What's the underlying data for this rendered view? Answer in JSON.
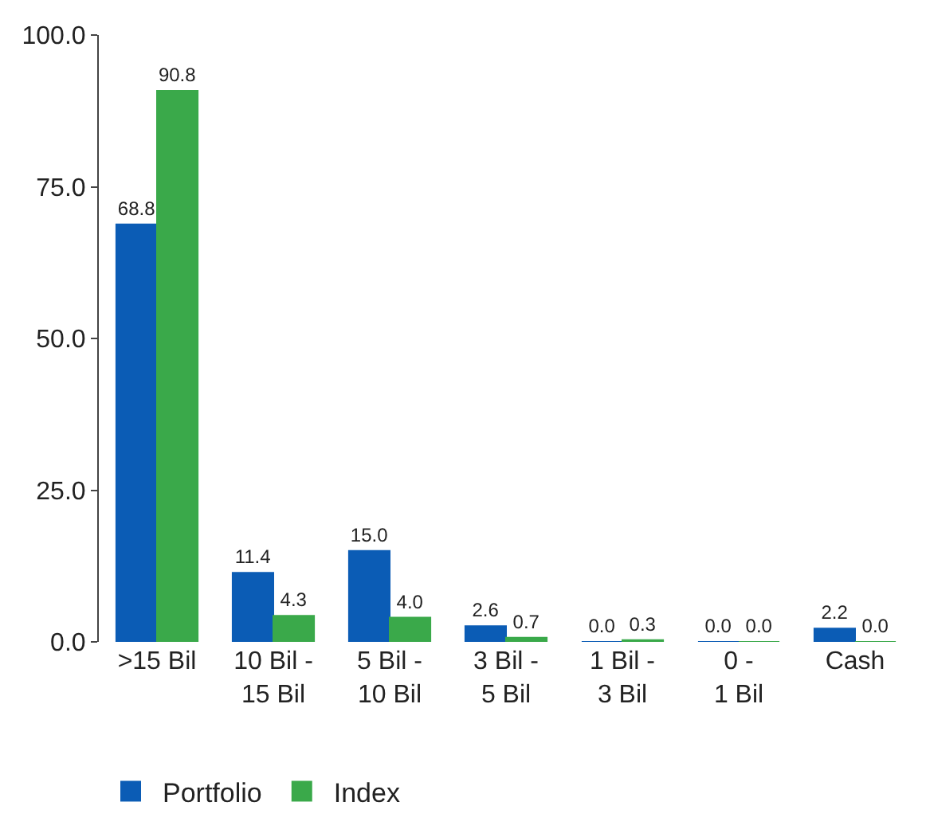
{
  "chart_data": {
    "type": "bar",
    "categories": [
      ">15 Bil",
      "10 Bil -\n15 Bil",
      "5 Bil -\n10 Bil",
      "3 Bil -\n5 Bil",
      "1 Bil -\n3 Bil",
      "0 -\n1 Bil",
      "Cash"
    ],
    "series": [
      {
        "name": "Portfolio",
        "color": "#0b5cb5",
        "values": [
          68.8,
          11.4,
          15.0,
          2.6,
          0.0,
          0.0,
          2.2
        ],
        "value_labels": [
          "68.8",
          "11.4",
          "15.0",
          "2.6",
          "0.0",
          "0.0",
          "2.2"
        ]
      },
      {
        "name": "Index",
        "color": "#3aa94a",
        "values": [
          90.8,
          4.3,
          4.0,
          0.7,
          0.3,
          0.0,
          0.0
        ],
        "value_labels": [
          "90.8",
          "4.3",
          "4.0",
          "0.7",
          "0.3",
          "0.0",
          "0.0"
        ]
      }
    ],
    "ylim": [
      0,
      100
    ],
    "yticks": [
      {
        "value": 0,
        "label": "0.0"
      },
      {
        "value": 25,
        "label": "25.0"
      },
      {
        "value": 50,
        "label": "50.0"
      },
      {
        "value": 75,
        "label": "75.0"
      },
      {
        "value": 100,
        "label": "100.0"
      }
    ],
    "grid": false,
    "legend": "bottom left"
  }
}
